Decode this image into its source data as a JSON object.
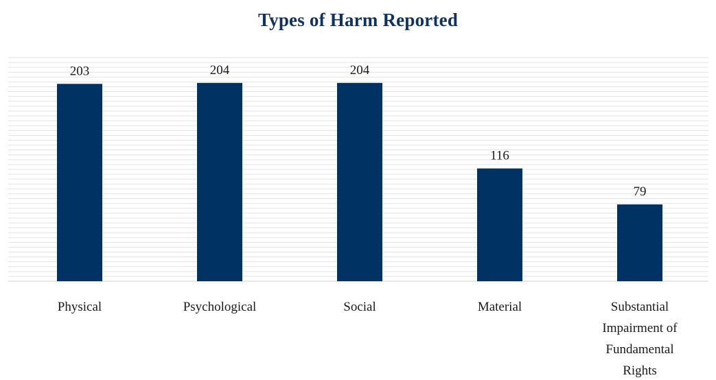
{
  "chart_data": {
    "type": "bar",
    "title": "Types of Harm Reported",
    "categories": [
      [
        "Physical"
      ],
      [
        "Psychological"
      ],
      [
        "Social"
      ],
      [
        "Material"
      ],
      [
        "Substantial",
        "Impairment of",
        "Fundamental",
        "Rights"
      ]
    ],
    "values": [
      203,
      204,
      204,
      116,
      79
    ],
    "xlabel": "",
    "ylabel": "",
    "ylim": [
      0,
      230
    ],
    "grid": true,
    "show_y_axis": false,
    "bar_color": "#003363",
    "grid_color": "#e3e3e3"
  }
}
